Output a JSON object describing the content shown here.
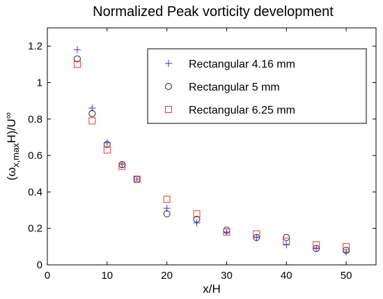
{
  "chart_data": {
    "type": "scatter",
    "title": "Normalized Peak vorticity development",
    "xlabel": "x/H",
    "ylabel_parts": {
      "open": "(ω",
      "sub": "x,max",
      "mid": "H)/U",
      "sup": "∞"
    },
    "xlim": [
      0,
      55
    ],
    "ylim": [
      0,
      1.3
    ],
    "xticks": [
      0,
      10,
      20,
      30,
      40,
      50
    ],
    "yticks": [
      0,
      0.2,
      0.4,
      0.6,
      0.8,
      1,
      1.2
    ],
    "ytick_labels": [
      "0",
      "0.2",
      "0.4",
      "0.6",
      "0.8",
      "1",
      "1.2"
    ],
    "grid": false,
    "legend_position": "top-right",
    "series": [
      {
        "name": "Rectangular 4.16 mm",
        "marker": "plus",
        "color": "#3333cc",
        "x": [
          5,
          7.5,
          10,
          12.5,
          15,
          20,
          25,
          30,
          35,
          40,
          45,
          50
        ],
        "y": [
          1.18,
          0.86,
          0.67,
          0.55,
          0.47,
          0.31,
          0.23,
          0.18,
          0.15,
          0.11,
          0.09,
          0.07
        ]
      },
      {
        "name": "Rectangular 5 mm",
        "marker": "circle",
        "color": "#222222",
        "x": [
          5,
          7.5,
          10,
          12.5,
          15,
          20,
          25,
          30,
          35,
          40,
          45,
          50
        ],
        "y": [
          1.13,
          0.83,
          0.66,
          0.55,
          0.47,
          0.28,
          0.25,
          0.19,
          0.15,
          0.15,
          0.09,
          0.08
        ]
      },
      {
        "name": "Rectangular 6.25 mm",
        "marker": "square",
        "color": "#ee3333",
        "x": [
          5,
          7.5,
          10,
          12.5,
          15,
          20,
          25,
          30,
          35,
          40,
          45,
          50
        ],
        "y": [
          1.1,
          0.79,
          0.63,
          0.54,
          0.47,
          0.36,
          0.28,
          0.18,
          0.17,
          0.13,
          0.11,
          0.1
        ]
      }
    ]
  }
}
